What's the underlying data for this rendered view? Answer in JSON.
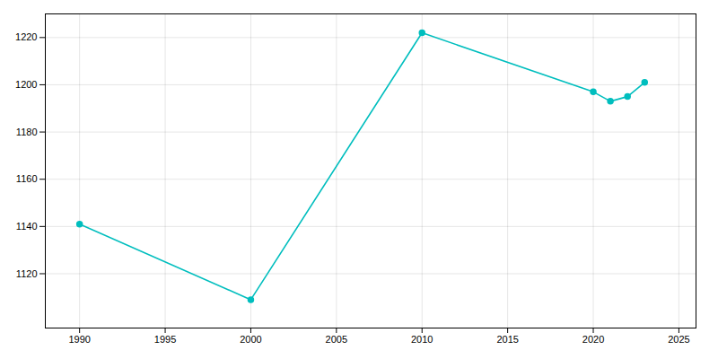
{
  "chart_data": {
    "type": "line",
    "x": [
      1990,
      2000,
      2010,
      2020,
      2021,
      2022,
      2023
    ],
    "values": [
      1141,
      1109,
      1222,
      1197,
      1193,
      1195,
      1201
    ],
    "color": "#00BEBE",
    "marker": "circle",
    "xlim": [
      1988,
      2026
    ],
    "xticks": [
      1990,
      1995,
      2000,
      2005,
      2010,
      2015,
      2020,
      2025
    ],
    "ylim": [
      1097,
      1230
    ],
    "yticks": [
      1120,
      1140,
      1160,
      1180,
      1200,
      1220
    ],
    "grid": true
  }
}
